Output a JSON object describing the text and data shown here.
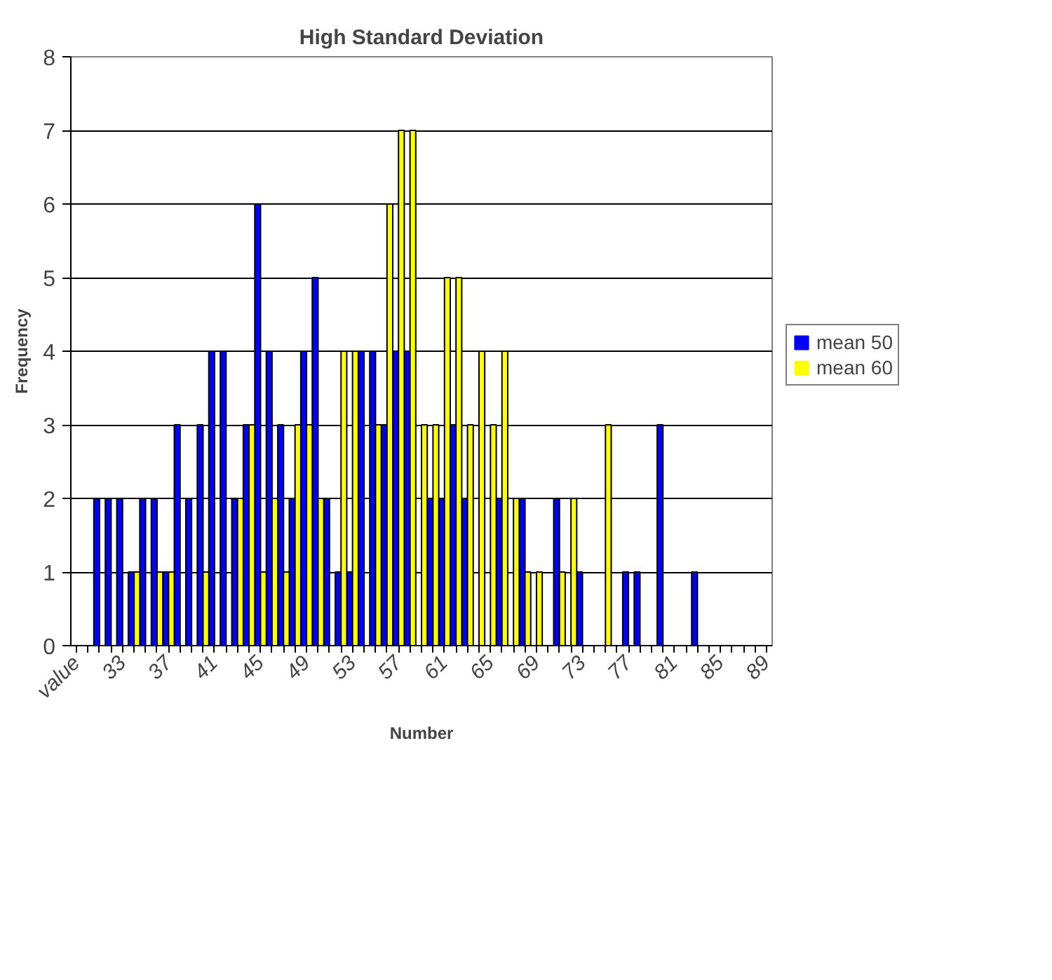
{
  "chart_data": {
    "type": "bar",
    "title": "High Standard Deviation",
    "xlabel": "Number",
    "ylabel": "Frequency",
    "categories": [
      "value",
      null,
      null,
      null,
      "33",
      null,
      null,
      null,
      "37",
      null,
      null,
      null,
      "41",
      null,
      null,
      null,
      "45",
      null,
      null,
      null,
      "49",
      null,
      null,
      null,
      "53",
      null,
      null,
      null,
      "57",
      null,
      null,
      null,
      "61",
      null,
      null,
      null,
      "65",
      null,
      null,
      null,
      "69",
      null,
      null,
      null,
      "73",
      null,
      null,
      null,
      "77",
      null,
      null,
      null,
      "81",
      null,
      null,
      null,
      "85",
      null,
      null,
      null,
      "89"
    ],
    "series": [
      {
        "name": "mean 50",
        "color": "#0000ff",
        "values": [
          0,
          0,
          2,
          2,
          2,
          1,
          2,
          2,
          1,
          3,
          2,
          3,
          4,
          4,
          2,
          3,
          6,
          4,
          3,
          2,
          4,
          5,
          2,
          1,
          1,
          4,
          4,
          3,
          4,
          4,
          0,
          2,
          2,
          3,
          2,
          0,
          0,
          2,
          0,
          2,
          0,
          0,
          2,
          0,
          1,
          0,
          0,
          0,
          1,
          1,
          0,
          3,
          0,
          0,
          1,
          0,
          0,
          0,
          0,
          0,
          0
        ]
      },
      {
        "name": "mean 60",
        "color": "#ffff00",
        "values": [
          0,
          0,
          0,
          0,
          0,
          1,
          0,
          1,
          1,
          0,
          0,
          1,
          0,
          0,
          2,
          3,
          1,
          2,
          1,
          3,
          3,
          2,
          0,
          4,
          4,
          0,
          3,
          6,
          7,
          7,
          3,
          3,
          5,
          5,
          3,
          4,
          3,
          4,
          2,
          1,
          1,
          0,
          1,
          2,
          0,
          0,
          3,
          0,
          0,
          0,
          0,
          0,
          0,
          0,
          0,
          0,
          0,
          0,
          0,
          0,
          0
        ]
      }
    ],
    "ylim": [
      0,
      8
    ],
    "yticks": [
      0,
      1,
      2,
      3,
      4,
      5,
      6,
      7,
      8
    ],
    "grid": "y",
    "legend": "right"
  }
}
